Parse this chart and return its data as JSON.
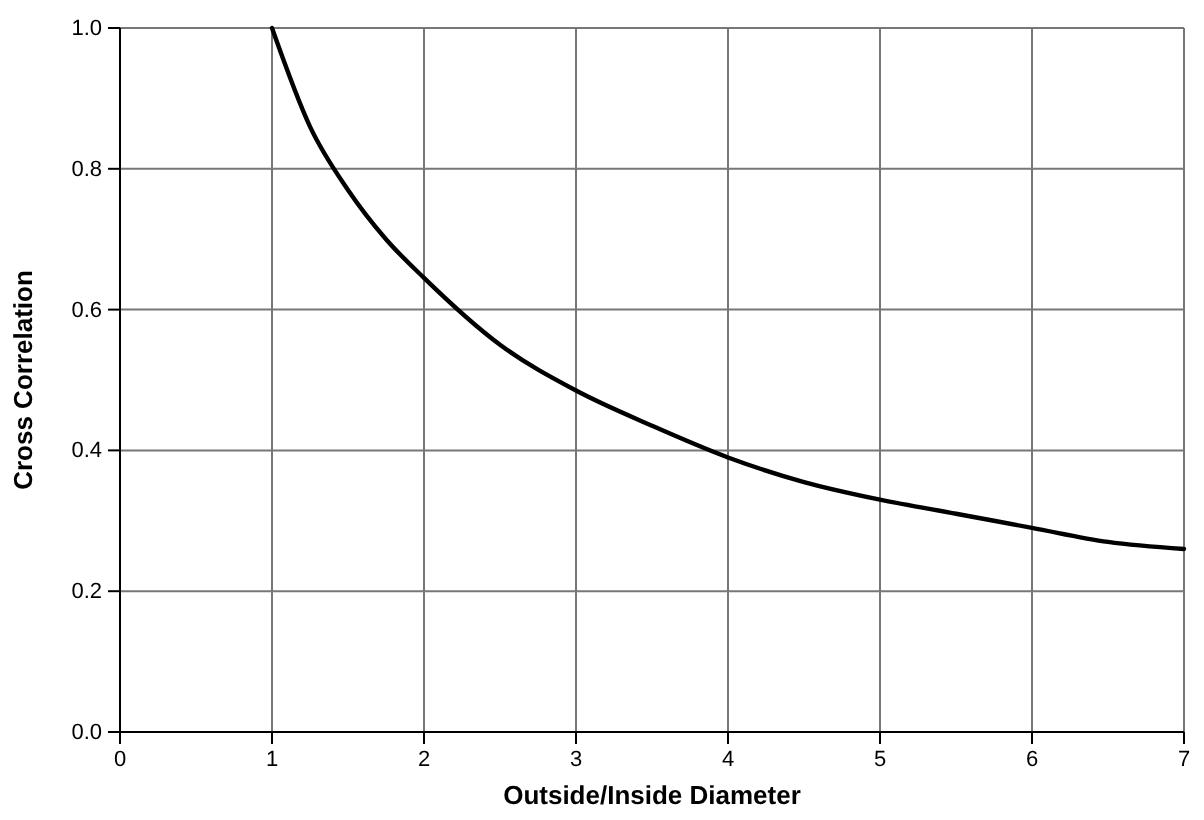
{
  "chart_data": {
    "type": "line",
    "xlabel": "Outside/Inside Diameter",
    "ylabel": "Cross Correlation",
    "x": [
      1,
      1.25,
      1.5,
      1.75,
      2,
      2.5,
      3,
      3.5,
      4,
      4.5,
      5,
      5.5,
      6,
      6.5,
      7
    ],
    "series": [
      {
        "color": "#000000",
        "values": [
          1.0,
          0.86,
          0.77,
          0.7,
          0.645,
          0.55,
          0.485,
          0.435,
          0.39,
          0.355,
          0.33,
          0.31,
          0.29,
          0.27,
          0.26
        ]
      }
    ],
    "xlim": [
      0,
      7
    ],
    "xticks": [
      0,
      1,
      2,
      3,
      4,
      5,
      6,
      7
    ],
    "ylim": [
      0,
      1
    ],
    "yticks": [
      {
        "value": 0,
        "label": "0.0"
      },
      {
        "value": 0.2,
        "label": "0.2"
      },
      {
        "value": 0.4,
        "label": "0.4"
      },
      {
        "value": 0.6,
        "label": "0.6"
      },
      {
        "value": 0.8,
        "label": "0.8"
      },
      {
        "value": 1,
        "label": "1.0"
      }
    ],
    "grid": true,
    "marker": "none",
    "line_style": "solid"
  }
}
